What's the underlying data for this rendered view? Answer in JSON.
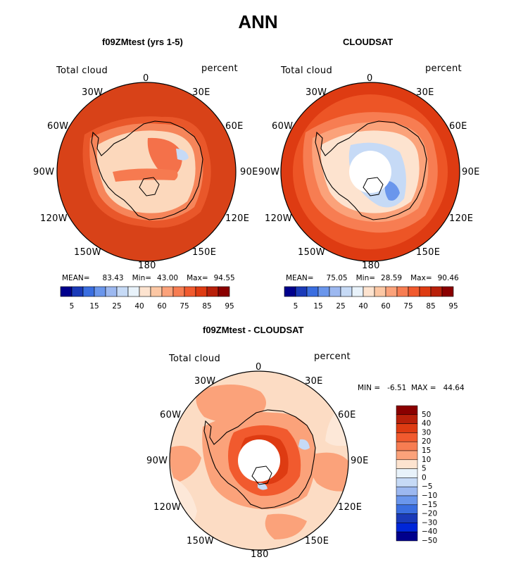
{
  "main_title": "ANN",
  "panels": [
    {
      "title": "f09ZMtest (yrs 1-5)",
      "left_label": "Total cloud",
      "right_label": "percent",
      "stats": {
        "mean_label": "MEAN=",
        "mean": "83.43",
        "min_label": "Min=",
        "min": "43.00",
        "max_label": "Max=",
        "max": "94.55"
      }
    },
    {
      "title": "CLOUDSAT",
      "left_label": "Total cloud",
      "right_label": "percent",
      "stats": {
        "mean_label": "MEAN=",
        "mean": "75.05",
        "min_label": "Min=",
        "min": "28.59",
        "max_label": "Max=",
        "max": "90.46"
      }
    },
    {
      "title": "f09ZMtest - CLOUDSAT",
      "left_label": "Total cloud",
      "right_label": "percent",
      "stats_line": "MIN =   -6.51  MAX =   44.64"
    }
  ],
  "lon_labels": [
    "0",
    "30E",
    "60E",
    "90E",
    "120E",
    "150E",
    "180",
    "150W",
    "120W",
    "90W",
    "60W",
    "30W"
  ],
  "abs_colorbar": {
    "colors": [
      "#00008c",
      "#1a3ab8",
      "#3a6ee0",
      "#6a96ec",
      "#9cb8f0",
      "#c6daf6",
      "#e8f2fa",
      "#fde3cf",
      "#fcc7a4",
      "#fba27a",
      "#f77d52",
      "#f15a2e",
      "#de3b12",
      "#b8200a",
      "#8a0000"
    ],
    "tick_labels": [
      "5",
      "15",
      "25",
      "40",
      "60",
      "75",
      "85",
      "95"
    ]
  },
  "diff_colorbar": {
    "colors": [
      "#8a0000",
      "#b8200a",
      "#de3b12",
      "#f15a2e",
      "#f77d52",
      "#fba27a",
      "#fde3cf",
      "#e8f2fa",
      "#c6daf6",
      "#9cb8f0",
      "#6a96ec",
      "#3a6ee0",
      "#1a3ab8",
      "#0026d8",
      "#00008c"
    ],
    "tick_labels": [
      "50",
      "40",
      "30",
      "20",
      "15",
      "10",
      "5",
      "0",
      "−5",
      "−10",
      "−15",
      "−20",
      "−30",
      "−40",
      "−50"
    ]
  },
  "colors": {
    "ocean_model": "#d84218",
    "ocean_obs": "#ed5526",
    "diff_base": "#fcdcc4"
  }
}
